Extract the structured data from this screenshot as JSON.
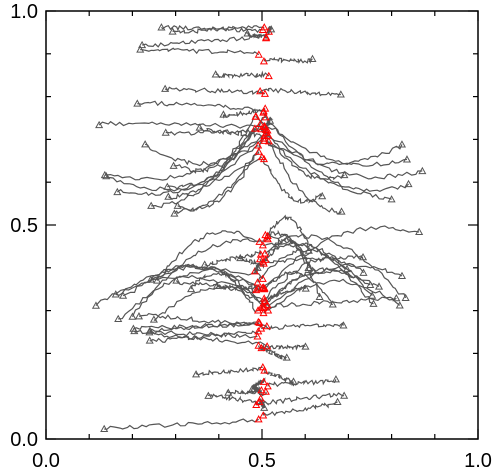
{
  "chart_data": {
    "type": "line",
    "title": "",
    "xlabel": "",
    "ylabel": "",
    "xlim": [
      0.0,
      1.0
    ],
    "ylim": [
      0.0,
      1.0
    ],
    "x_ticks": [
      "0.0",
      "0.5",
      "1.0"
    ],
    "y_ticks": [
      "0.0",
      "0.5",
      "1.0"
    ],
    "grid": false,
    "line_color": "#555555",
    "start_marker_color": "#ff0000",
    "end_marker_color": "#555555",
    "series_note_visible": "",
    "start_band_x": 0.5,
    "series_groups": [
      {
        "start_y_range": [
          0.04,
          0.98
        ],
        "end_x_range": [
          0.12,
          0.88
        ],
        "count": 60,
        "behavior": "horizontal drift"
      },
      {
        "start_y_range": [
          0.64,
          0.77
        ],
        "end_x_range": [
          0.1,
          0.92
        ],
        "count": 18,
        "behavior": "converge then spread"
      },
      {
        "start_y_range": [
          0.27,
          0.48
        ],
        "end_x_range": [
          0.1,
          0.9
        ],
        "count": 24,
        "behavior": "converge then spread"
      }
    ]
  }
}
